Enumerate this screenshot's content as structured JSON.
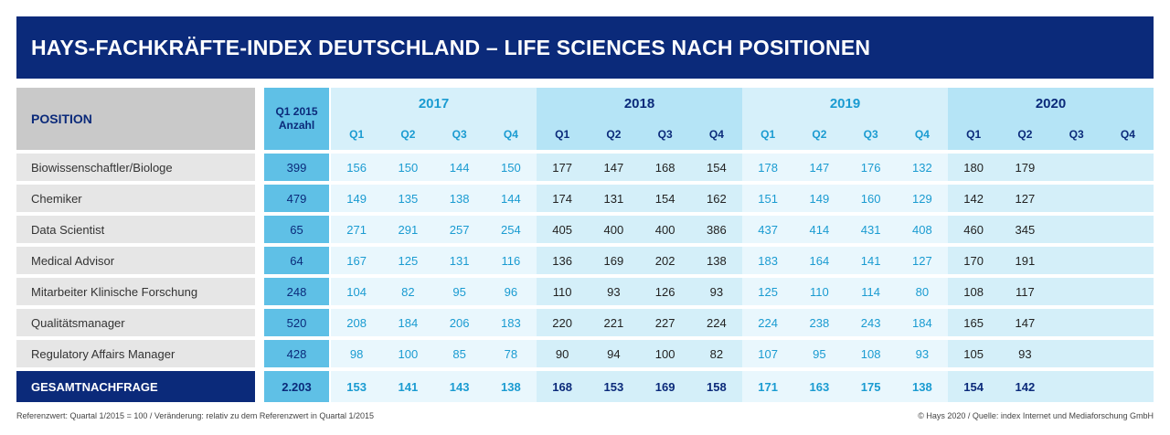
{
  "title": "HAYS-FACHKRÄFTE-INDEX DEUTSCHLAND – LIFE SCIENCES NACH POSITIONEN",
  "header": {
    "position": "POSITION",
    "anzahl_line1": "Q1 2015",
    "anzahl_line2": "Anzahl",
    "years": [
      "2017",
      "2018",
      "2019",
      "2020"
    ],
    "quarters": [
      "Q1",
      "Q2",
      "Q3",
      "Q4"
    ]
  },
  "rows": [
    {
      "name": "Biowissenschaftler/Biologe",
      "anzahl": "399",
      "values": [
        "156",
        "150",
        "144",
        "150",
        "177",
        "147",
        "168",
        "154",
        "178",
        "147",
        "176",
        "132",
        "180",
        "179",
        "",
        ""
      ]
    },
    {
      "name": "Chemiker",
      "anzahl": "479",
      "values": [
        "149",
        "135",
        "138",
        "144",
        "174",
        "131",
        "154",
        "162",
        "151",
        "149",
        "160",
        "129",
        "142",
        "127",
        "",
        ""
      ]
    },
    {
      "name": "Data Scientist",
      "anzahl": "65",
      "values": [
        "271",
        "291",
        "257",
        "254",
        "405",
        "400",
        "400",
        "386",
        "437",
        "414",
        "431",
        "408",
        "460",
        "345",
        "",
        ""
      ]
    },
    {
      "name": "Medical Advisor",
      "anzahl": "64",
      "values": [
        "167",
        "125",
        "131",
        "116",
        "136",
        "169",
        "202",
        "138",
        "183",
        "164",
        "141",
        "127",
        "170",
        "191",
        "",
        ""
      ]
    },
    {
      "name": "Mitarbeiter Klinische Forschung",
      "anzahl": "248",
      "values": [
        "104",
        "82",
        "95",
        "96",
        "110",
        "93",
        "126",
        "93",
        "125",
        "110",
        "114",
        "80",
        "108",
        "117",
        "",
        ""
      ]
    },
    {
      "name": "Qualitätsmanager",
      "anzahl": "520",
      "values": [
        "208",
        "184",
        "206",
        "183",
        "220",
        "221",
        "227",
        "224",
        "224",
        "238",
        "243",
        "184",
        "165",
        "147",
        "",
        ""
      ]
    },
    {
      "name": "Regulatory Affairs Manager",
      "anzahl": "428",
      "values": [
        "98",
        "100",
        "85",
        "78",
        "90",
        "94",
        "100",
        "82",
        "107",
        "95",
        "108",
        "93",
        "105",
        "93",
        "",
        ""
      ]
    }
  ],
  "total": {
    "name": "GESAMTNACHFRAGE",
    "anzahl": "2.203",
    "values": [
      "153",
      "141",
      "143",
      "138",
      "168",
      "153",
      "169",
      "158",
      "171",
      "163",
      "175",
      "138",
      "154",
      "142",
      "",
      ""
    ]
  },
  "footer": {
    "left": "Referenzwert: Quartal 1/2015 = 100 / Veränderung: relativ zu dem Referenzwert in Quartal 1/2015",
    "right": "© Hays 2020 / Quelle: index Internet und Mediaforschung GmbH"
  },
  "colors": {
    "navy": "#0b2a7a",
    "cyan": "#5fc0e6",
    "light_blue_text": "#1a9bd1"
  }
}
